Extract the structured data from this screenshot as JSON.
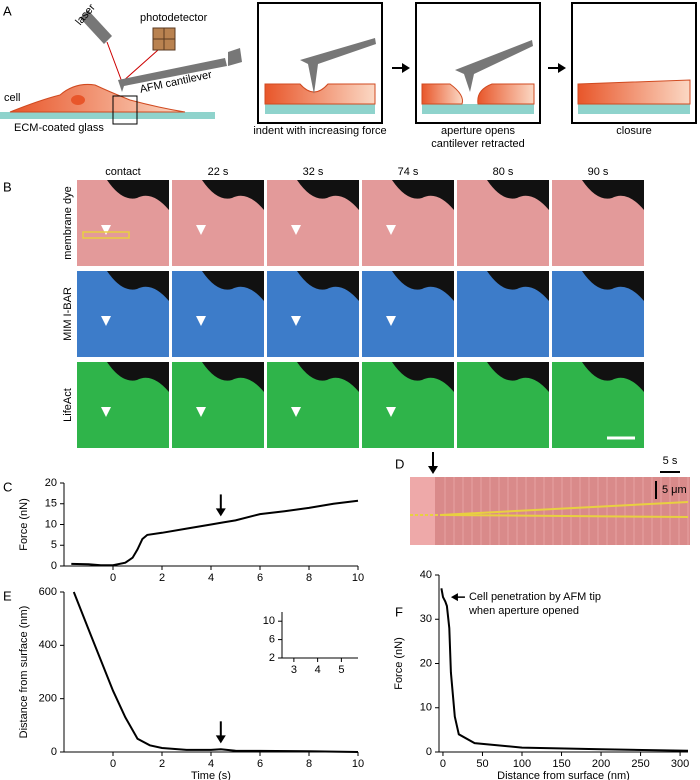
{
  "schematic": {
    "panel_label": "A",
    "laser": "laser",
    "photodetector": "photodetector",
    "cell": "cell",
    "cantilever": "AFM cantilever",
    "glass": "ECM-coated glass",
    "step1": "indent with increasing force",
    "step2_line1": "aperture opens",
    "step2_line2": "cantilever retracted",
    "step3": "closure"
  },
  "micrographs": {
    "panel_label": "B",
    "columns": [
      "contact",
      "22 s",
      "32 s",
      "74 s",
      "80 s",
      "90 s"
    ],
    "rows": [
      "membrane dye",
      "MIM I-BAR",
      "LifeAct"
    ]
  },
  "kymograph": {
    "panel_label": "D",
    "time_scale": "5 s",
    "length_scale": "5 μm"
  },
  "chart_data": [
    {
      "type": "line",
      "panel_label": "C",
      "y_label": "Force (nN)",
      "color": "#000000",
      "x": [
        -1.7,
        -1,
        -0.5,
        0,
        0.5,
        0.8,
        1,
        1.2,
        1.4,
        2,
        3,
        4,
        4.5,
        5,
        6,
        7,
        8,
        9,
        10
      ],
      "values": [
        0.5,
        0.4,
        0.2,
        0.2,
        0.8,
        2,
        4,
        6.5,
        7.5,
        8,
        9,
        10,
        10.5,
        11,
        12.5,
        13.2,
        14,
        15,
        15.7
      ],
      "arrow_x": 4.4,
      "xlim": [
        -2,
        10
      ],
      "xticks": [
        0,
        2,
        4,
        6,
        8,
        10
      ],
      "ylim": [
        0,
        20
      ],
      "yticks": [
        0,
        5,
        10,
        15,
        20
      ]
    },
    {
      "type": "line",
      "panel_label": "E",
      "y_label": "Distance from surface (nm)",
      "x_label": "Time (s)",
      "color": "#000000",
      "x": [
        -1.6,
        -1,
        0,
        0.5,
        1,
        1.5,
        2,
        3,
        4,
        4.4,
        5,
        6,
        8,
        10
      ],
      "values": [
        600,
        460,
        230,
        130,
        50,
        25,
        15,
        8,
        8,
        10,
        5,
        4,
        3,
        0
      ],
      "arrow_x": 4.4,
      "xlim": [
        -2,
        10
      ],
      "xticks": [
        0,
        2,
        4,
        6,
        8,
        10
      ],
      "ylim": [
        0,
        600
      ],
      "yticks": [
        0,
        200,
        400,
        600
      ]
    },
    {
      "type": "line",
      "xlim": [
        2.5,
        5.7
      ],
      "xticks": [
        3,
        4,
        5
      ],
      "ylim": [
        2,
        12
      ],
      "yticks": [
        2,
        6,
        10
      ]
    },
    {
      "type": "line",
      "panel_label": "F",
      "y_label": "Force (nN)",
      "x_label": "Distance from surface (nm)",
      "color": "#000000",
      "x": [
        -2,
        0,
        3,
        5,
        8,
        10,
        15,
        20,
        40,
        100,
        200,
        310
      ],
      "values": [
        37,
        35,
        34,
        33,
        28,
        18,
        8,
        4,
        2,
        1,
        0.6,
        0.3
      ],
      "annotation_lines": [
        "Cell penetration by AFM tip",
        "when aperture opened"
      ],
      "xlim": [
        -5,
        310
      ],
      "xticks": [
        0,
        50,
        100,
        150,
        200,
        250,
        300
      ],
      "ylim": [
        0,
        40
      ],
      "yticks": [
        0,
        10,
        20,
        30,
        40
      ]
    }
  ]
}
